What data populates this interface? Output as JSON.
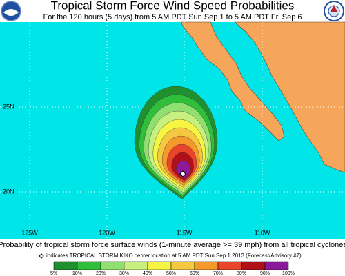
{
  "header": {
    "title": "Tropical Storm Force Wind Speed Probabilities",
    "subtitle": "For the 120 hours (5 days) from 5 AM PDT Sun Sep 1 to 5 AM PDT Fri Sep 6"
  },
  "map": {
    "lat_labels": [
      "25N",
      "20N"
    ],
    "lon_labels": [
      "125W",
      "120W",
      "115W",
      "110W"
    ]
  },
  "caption": "Probability of tropical storm force surface winds (1-minute average >= 39 mph) from all tropical cyclones",
  "note": "indicates TROPICAL STORM KIKO center location at 5 AM PDT Sun Sep 1 2013 (Forecast/Advisory #7)",
  "legend": {
    "labels": [
      "5%",
      "10%",
      "20%",
      "30%",
      "40%",
      "50%",
      "60%",
      "70%",
      "80%",
      "90%",
      "100%"
    ],
    "colors": [
      "#1f8f2f",
      "#2fbf3a",
      "#8fe070",
      "#c8f080",
      "#f5f542",
      "#f5c842",
      "#f59a2a",
      "#e8452a",
      "#b0101a",
      "#8a1a9a"
    ]
  }
}
